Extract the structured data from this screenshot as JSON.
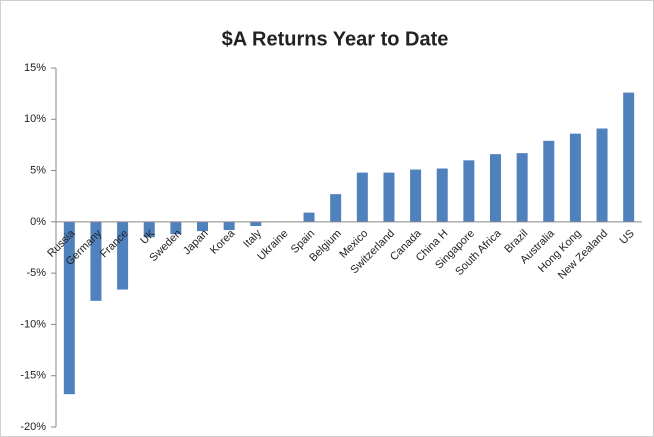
{
  "chart_data": {
    "type": "bar",
    "title": "$A Returns Year to Date",
    "categories": [
      "Russia",
      "Germany",
      "France",
      "UK",
      "Sweden",
      "Japan",
      "Korea",
      "Italy",
      "Ukraine",
      "Spain",
      "Belgium",
      "Mexico",
      "Switzerland",
      "Canada",
      "China H",
      "Singapore",
      "South Africa",
      "Brazil",
      "Australia",
      "Hong Kong",
      "New Zealand",
      "US"
    ],
    "values": [
      -16.8,
      -7.7,
      -6.6,
      -1.5,
      -1.2,
      -0.9,
      -0.8,
      -0.4,
      0,
      0.9,
      2.7,
      4.8,
      4.8,
      5.1,
      5.2,
      6.0,
      6.6,
      6.7,
      7.9,
      8.6,
      9.1,
      12.6
    ],
    "color": "#4f81bd",
    "ylim": [
      -20,
      15
    ],
    "yticks": [
      {
        "value": -20,
        "label": "-20%"
      },
      {
        "value": -15,
        "label": "-15%"
      },
      {
        "value": -10,
        "label": "-10%"
      },
      {
        "value": -5,
        "label": "-5%"
      },
      {
        "value": 0,
        "label": "0%"
      },
      {
        "value": 5,
        "label": "5%"
      },
      {
        "value": 10,
        "label": "10%"
      },
      {
        "value": 15,
        "label": "15%"
      }
    ],
    "grid": false
  }
}
